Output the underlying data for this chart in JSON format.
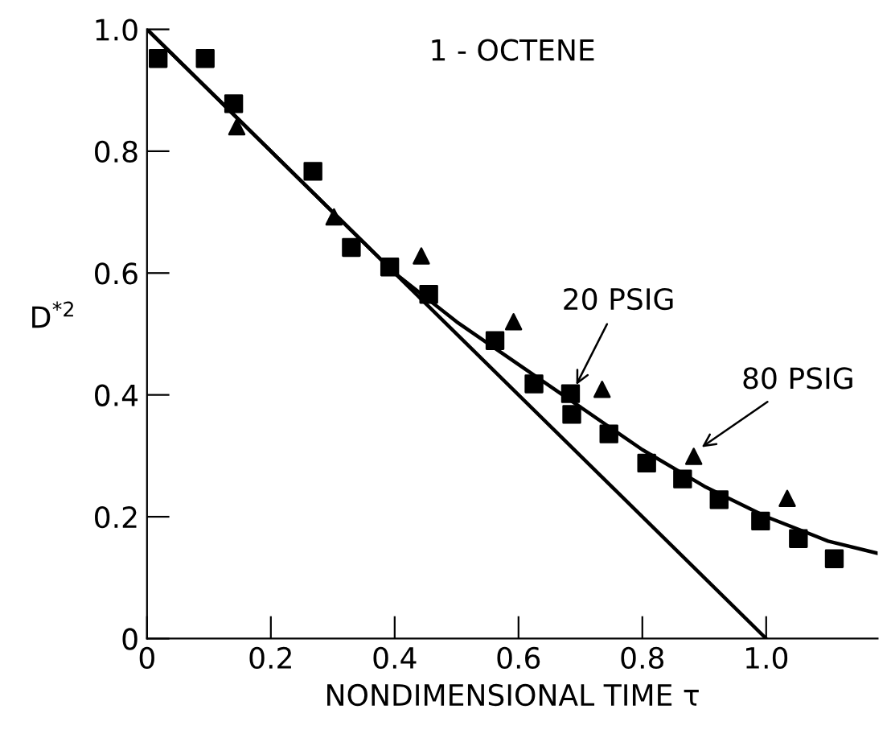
{
  "chart_data": {
    "type": "scatter",
    "title": "1 - OCTENE",
    "xlabel": "NONDIMENSIONAL TIME τ",
    "ylabel": "D$^{*2}$",
    "xlim": [
      0,
      1.18
    ],
    "ylim": [
      0,
      1.0
    ],
    "xticks": [
      0,
      {
        "value": 0.2,
        "label": "0.2"
      },
      {
        "value": 0.4,
        "label": "0.4"
      },
      {
        "value": 0.6,
        "label": "0.6"
      },
      {
        "value": 0.8,
        "label": "0.8"
      },
      {
        "value": 1.0,
        "label": "1.0"
      }
    ],
    "yticks": [
      0,
      {
        "value": 0.2,
        "label": "0.2"
      },
      {
        "value": 0.4,
        "label": "0.4"
      },
      {
        "value": 0.6,
        "label": "0.6"
      },
      {
        "value": 0.8,
        "label": "0.8"
      },
      {
        "value": 1.0,
        "label": "1.0"
      }
    ],
    "grid": false,
    "legend": false,
    "series": [
      {
        "marker": "square",
        "color": "#000000",
        "x": [
          0.018,
          0.094,
          0.14,
          0.268,
          0.33,
          0.392,
          0.455,
          0.562,
          0.625,
          0.684,
          0.686,
          0.746,
          0.807,
          0.865,
          0.924,
          0.991,
          1.052,
          1.11
        ],
        "values": [
          0.952,
          0.952,
          0.878,
          0.767,
          0.642,
          0.61,
          0.565,
          0.489,
          0.418,
          0.402,
          0.368,
          0.336,
          0.288,
          0.262,
          0.228,
          0.193,
          0.164,
          0.131
        ]
      },
      {
        "marker": "triangle",
        "color": "#000000",
        "x": [
          0.145,
          0.302,
          0.443,
          0.592,
          0.735,
          0.883,
          1.034
        ],
        "values": [
          0.84,
          0.692,
          0.628,
          0.52,
          0.409,
          0.299,
          0.23
        ]
      },
      {
        "type": "line",
        "marker": "none",
        "line_style": "solid",
        "color": "#000000",
        "x": [
          0,
          1.0
        ],
        "values": [
          1.0,
          0
        ]
      },
      {
        "type": "line",
        "marker": "none",
        "line_style": "solid",
        "color": "#000000",
        "x": [
          0,
          0.2,
          0.4,
          0.5,
          0.6,
          0.7,
          0.8,
          0.9,
          1.0,
          1.1,
          1.18
        ],
        "values": [
          1.0,
          0.8,
          0.6,
          0.52,
          0.45,
          0.38,
          0.31,
          0.25,
          0.2,
          0.16,
          0.14
        ]
      }
    ],
    "annotations": [
      {
        "text": "20 PSIG",
        "x": 0.69,
        "y": 0.41
      },
      {
        "text": "80 PSIG",
        "x": 0.89,
        "y": 0.31
      }
    ]
  }
}
